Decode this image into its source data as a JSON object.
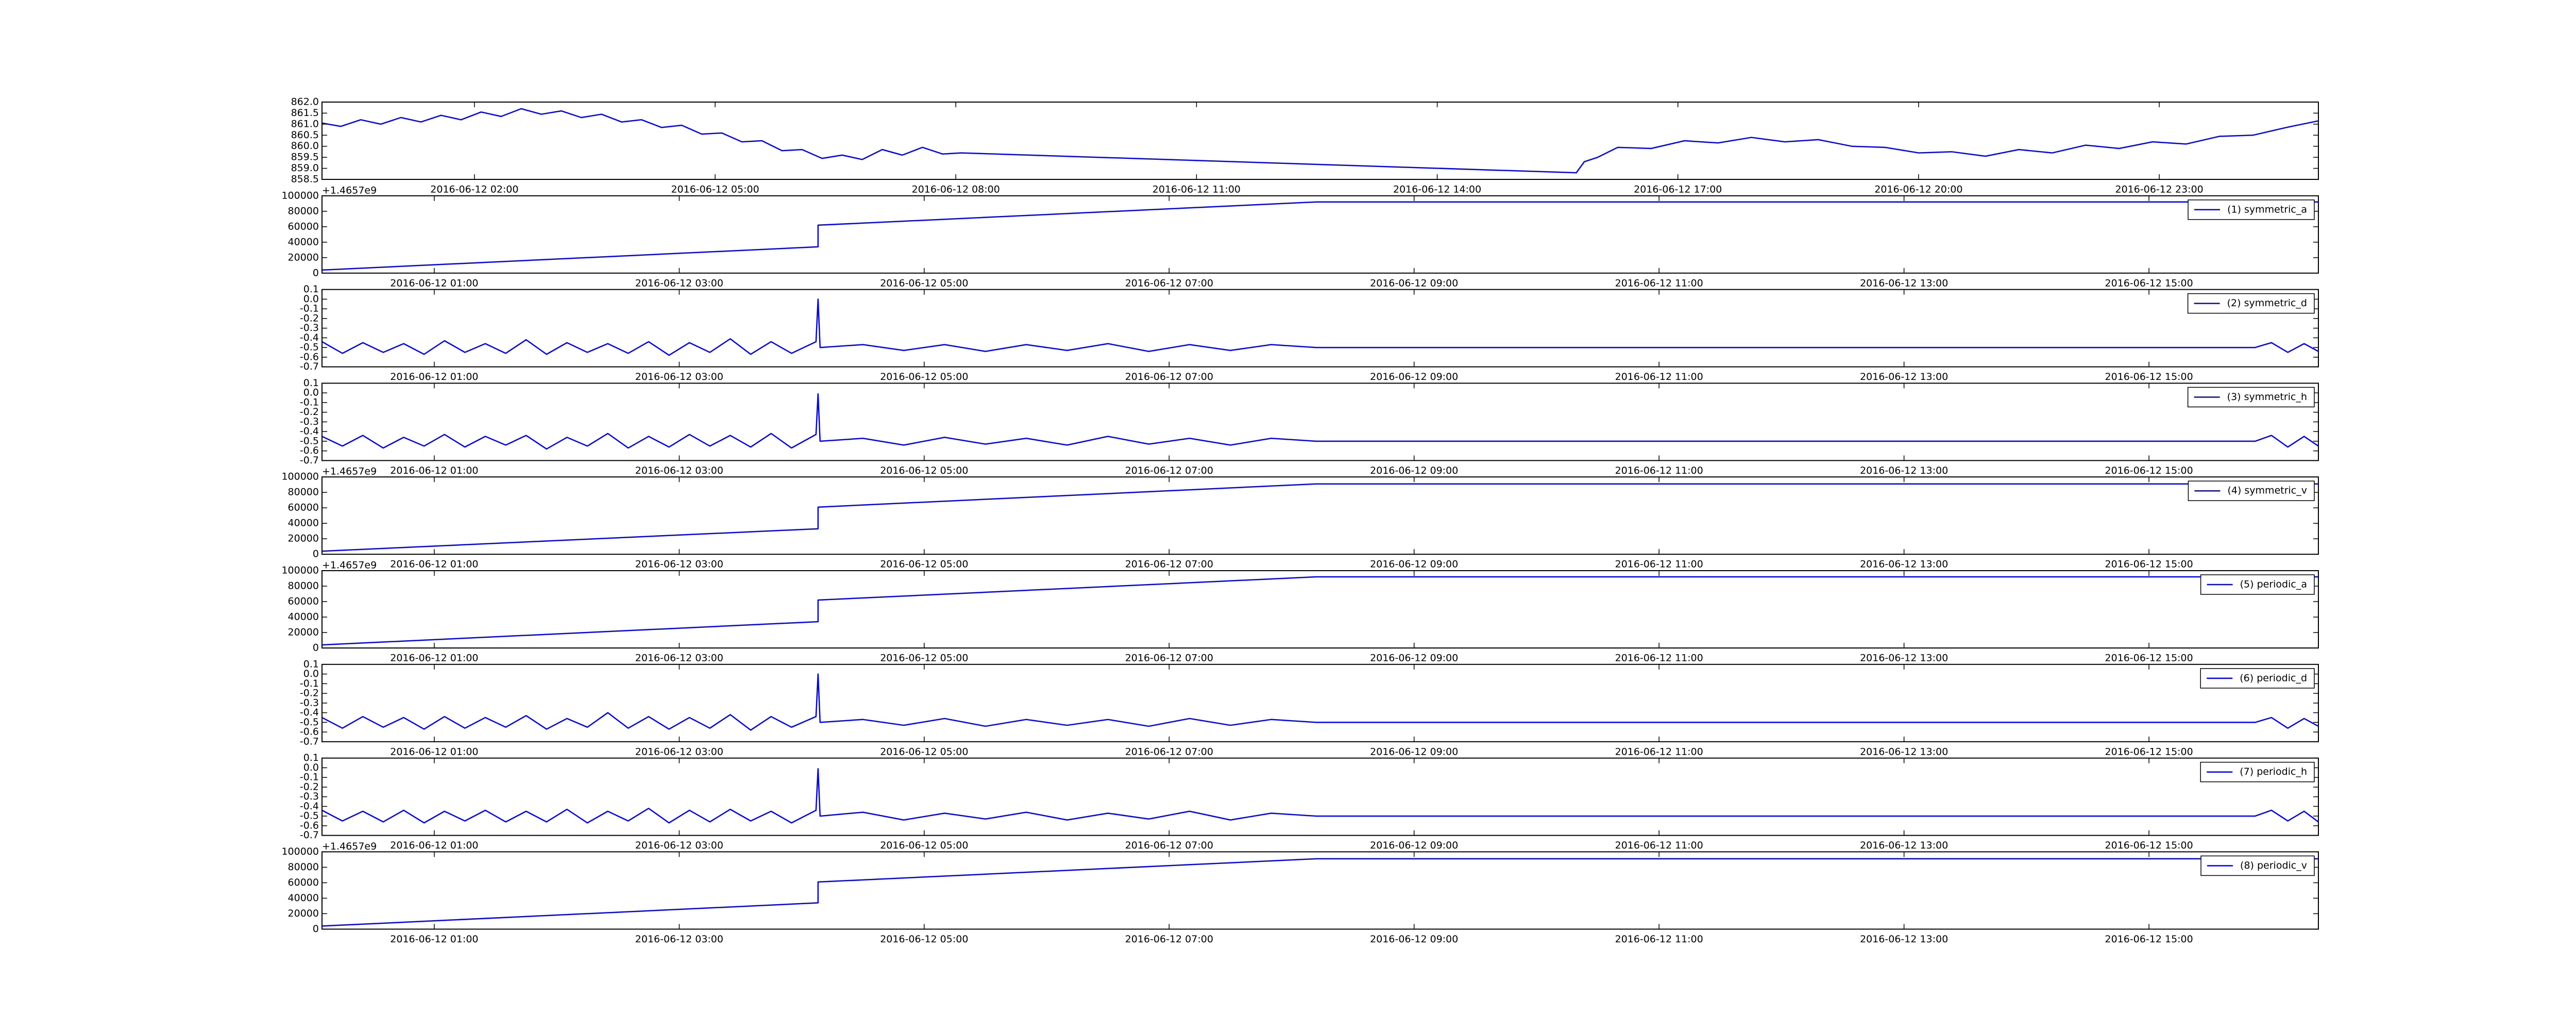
{
  "chart_data": [
    {
      "type": "line",
      "x": [
        "2016-06-12 00:06",
        "2016-06-12 00:20",
        "2016-06-12 00:35",
        "2016-06-12 00:50",
        "2016-06-12 01:05",
        "2016-06-12 01:20",
        "2016-06-12 01:35",
        "2016-06-12 01:50",
        "2016-06-12 02:05",
        "2016-06-12 02:20",
        "2016-06-12 02:35",
        "2016-06-12 02:50",
        "2016-06-12 03:05",
        "2016-06-12 03:20",
        "2016-06-12 03:35",
        "2016-06-12 03:50",
        "2016-06-12 04:05",
        "2016-06-12 04:20",
        "2016-06-12 04:35",
        "2016-06-12 04:50",
        "2016-06-12 05:05",
        "2016-06-12 05:20",
        "2016-06-12 05:35",
        "2016-06-12 05:50",
        "2016-06-12 06:05",
        "2016-06-12 06:20",
        "2016-06-12 06:35",
        "2016-06-12 06:50",
        "2016-06-12 07:05",
        "2016-06-12 07:20",
        "2016-06-12 07:35",
        "2016-06-12 07:50",
        "2016-06-12 08:04",
        "2016-06-12 15:44",
        "2016-06-12 15:50",
        "2016-06-12 16:00",
        "2016-06-12 16:15",
        "2016-06-12 16:40",
        "2016-06-12 17:05",
        "2016-06-12 17:30",
        "2016-06-12 17:55",
        "2016-06-12 18:20",
        "2016-06-12 18:45",
        "2016-06-12 19:10",
        "2016-06-12 19:35",
        "2016-06-12 20:00",
        "2016-06-12 20:25",
        "2016-06-12 20:50",
        "2016-06-12 21:15",
        "2016-06-12 21:40",
        "2016-06-12 22:05",
        "2016-06-12 22:30",
        "2016-06-12 22:55",
        "2016-06-12 23:20",
        "2016-06-12 23:45",
        "2016-06-13 00:10",
        "2016-06-13 00:35",
        "2016-06-13 00:59"
      ],
      "series": [
        {
          "color": "#0000ff",
          "values": [
            861.05,
            860.9,
            861.2,
            861.0,
            861.3,
            861.1,
            861.4,
            861.2,
            861.55,
            861.35,
            861.7,
            861.45,
            861.6,
            861.3,
            861.45,
            861.1,
            861.2,
            860.85,
            860.95,
            860.55,
            860.6,
            860.2,
            860.25,
            859.8,
            859.85,
            859.45,
            859.6,
            859.4,
            859.85,
            859.6,
            859.95,
            859.65,
            859.7,
            858.8,
            859.3,
            859.5,
            859.95,
            859.9,
            860.25,
            860.15,
            860.4,
            860.2,
            860.3,
            860.0,
            859.95,
            859.7,
            859.75,
            859.55,
            859.85,
            859.7,
            860.05,
            859.9,
            860.2,
            860.1,
            860.45,
            860.5,
            860.85,
            861.15
          ]
        }
      ],
      "xlim": [
        "2016-06-12 00:06",
        "2016-06-13 00:59"
      ],
      "xticks": [
        "2016-06-12 02:00",
        "2016-06-12 05:00",
        "2016-06-12 08:00",
        "2016-06-12 11:00",
        "2016-06-12 14:00",
        "2016-06-12 17:00",
        "2016-06-12 20:00",
        "2016-06-12 23:00"
      ],
      "ylim": [
        858.5,
        862.0
      ],
      "yticks": [
        858.5,
        {
          "value": 859,
          "label": "859.0"
        },
        859.5,
        {
          "value": 860,
          "label": "860.0"
        },
        860.5,
        {
          "value": 861,
          "label": "861.0"
        },
        861.5,
        {
          "value": 862,
          "label": "862.0"
        }
      ]
    },
    {
      "type": "line",
      "y_offset_label": "+1.4657e9",
      "legend": "upper right",
      "x": [
        "2016-06-12 00:05",
        "2016-06-12 04:08",
        "2016-06-12 04:08",
        "2016-06-12 08:12",
        "2016-06-12 16:23"
      ],
      "series": [
        {
          "name": "(1) symmetric_a",
          "color": "#0000ff",
          "values": [
            4000,
            34000,
            62000,
            92000,
            92000
          ]
        }
      ],
      "xlim": [
        "2016-06-12 00:05",
        "2016-06-12 16:23"
      ],
      "xticks": [
        "2016-06-12 01:00",
        "2016-06-12 03:00",
        "2016-06-12 05:00",
        "2016-06-12 07:00",
        "2016-06-12 09:00",
        "2016-06-12 11:00",
        "2016-06-12 13:00",
        "2016-06-12 15:00"
      ],
      "ylim": [
        0,
        100000
      ],
      "yticks": [
        0,
        20000,
        40000,
        60000,
        80000,
        100000
      ]
    },
    {
      "type": "line",
      "legend": "upper right",
      "x": [
        "2016-06-12 00:05",
        "2016-06-12 00:15",
        "2016-06-12 00:25",
        "2016-06-12 00:35",
        "2016-06-12 00:45",
        "2016-06-12 00:55",
        "2016-06-12 01:05",
        "2016-06-12 01:15",
        "2016-06-12 01:25",
        "2016-06-12 01:35",
        "2016-06-12 01:45",
        "2016-06-12 01:55",
        "2016-06-12 02:05",
        "2016-06-12 02:15",
        "2016-06-12 02:25",
        "2016-06-12 02:35",
        "2016-06-12 02:45",
        "2016-06-12 02:55",
        "2016-06-12 03:05",
        "2016-06-12 03:15",
        "2016-06-12 03:25",
        "2016-06-12 03:35",
        "2016-06-12 03:45",
        "2016-06-12 03:55",
        "2016-06-12 04:07",
        "2016-06-12 04:08",
        "2016-06-12 04:09",
        "2016-06-12 04:30",
        "2016-06-12 04:50",
        "2016-06-12 05:10",
        "2016-06-12 05:30",
        "2016-06-12 05:50",
        "2016-06-12 06:10",
        "2016-06-12 06:30",
        "2016-06-12 06:50",
        "2016-06-12 07:10",
        "2016-06-12 07:30",
        "2016-06-12 07:50",
        "2016-06-12 08:12",
        "2016-06-12 15:52",
        "2016-06-12 16:00",
        "2016-06-12 16:08",
        "2016-06-12 16:16",
        "2016-06-12 16:23"
      ],
      "series": [
        {
          "name": "(2) symmetric_d",
          "color": "#0000ff",
          "values": [
            -0.44,
            -0.56,
            -0.45,
            -0.55,
            -0.46,
            -0.57,
            -0.43,
            -0.55,
            -0.46,
            -0.56,
            -0.42,
            -0.57,
            -0.45,
            -0.55,
            -0.46,
            -0.56,
            -0.44,
            -0.58,
            -0.45,
            -0.55,
            -0.41,
            -0.57,
            -0.44,
            -0.56,
            -0.44,
            0.0,
            -0.5,
            -0.47,
            -0.53,
            -0.47,
            -0.54,
            -0.47,
            -0.53,
            -0.46,
            -0.54,
            -0.47,
            -0.53,
            -0.47,
            -0.5,
            -0.5,
            -0.45,
            -0.55,
            -0.46,
            -0.54
          ]
        }
      ],
      "xlim": [
        "2016-06-12 00:05",
        "2016-06-12 16:23"
      ],
      "xticks": [
        "2016-06-12 01:00",
        "2016-06-12 03:00",
        "2016-06-12 05:00",
        "2016-06-12 07:00",
        "2016-06-12 09:00",
        "2016-06-12 11:00",
        "2016-06-12 13:00",
        "2016-06-12 15:00"
      ],
      "ylim": [
        -0.7,
        0.1
      ],
      "yticks": [
        -0.7,
        -0.6,
        -0.5,
        -0.4,
        -0.3,
        -0.2,
        -0.1,
        {
          "value": 0,
          "label": "0.0"
        },
        0.1
      ]
    },
    {
      "type": "line",
      "legend": "upper right",
      "x": [
        "2016-06-12 00:05",
        "2016-06-12 00:15",
        "2016-06-12 00:25",
        "2016-06-12 00:35",
        "2016-06-12 00:45",
        "2016-06-12 00:55",
        "2016-06-12 01:05",
        "2016-06-12 01:15",
        "2016-06-12 01:25",
        "2016-06-12 01:35",
        "2016-06-12 01:45",
        "2016-06-12 01:55",
        "2016-06-12 02:05",
        "2016-06-12 02:15",
        "2016-06-12 02:25",
        "2016-06-12 02:35",
        "2016-06-12 02:45",
        "2016-06-12 02:55",
        "2016-06-12 03:05",
        "2016-06-12 03:15",
        "2016-06-12 03:25",
        "2016-06-12 03:35",
        "2016-06-12 03:45",
        "2016-06-12 03:55",
        "2016-06-12 04:07",
        "2016-06-12 04:08",
        "2016-06-12 04:09",
        "2016-06-12 04:30",
        "2016-06-12 04:50",
        "2016-06-12 05:10",
        "2016-06-12 05:30",
        "2016-06-12 05:50",
        "2016-06-12 06:10",
        "2016-06-12 06:30",
        "2016-06-12 06:50",
        "2016-06-12 07:10",
        "2016-06-12 07:30",
        "2016-06-12 07:50",
        "2016-06-12 08:12",
        "2016-06-12 15:52",
        "2016-06-12 16:00",
        "2016-06-12 16:08",
        "2016-06-12 16:16",
        "2016-06-12 16:23"
      ],
      "series": [
        {
          "name": "(3) symmetric_h",
          "color": "#0000ff",
          "values": [
            -0.45,
            -0.55,
            -0.44,
            -0.57,
            -0.46,
            -0.55,
            -0.43,
            -0.56,
            -0.45,
            -0.54,
            -0.44,
            -0.58,
            -0.46,
            -0.55,
            -0.42,
            -0.57,
            -0.45,
            -0.56,
            -0.43,
            -0.55,
            -0.44,
            -0.56,
            -0.42,
            -0.57,
            -0.43,
            -0.01,
            -0.5,
            -0.47,
            -0.54,
            -0.46,
            -0.53,
            -0.47,
            -0.54,
            -0.45,
            -0.53,
            -0.47,
            -0.54,
            -0.47,
            -0.5,
            -0.5,
            -0.44,
            -0.56,
            -0.45,
            -0.55
          ]
        }
      ],
      "xlim": [
        "2016-06-12 00:05",
        "2016-06-12 16:23"
      ],
      "xticks": [
        "2016-06-12 01:00",
        "2016-06-12 03:00",
        "2016-06-12 05:00",
        "2016-06-12 07:00",
        "2016-06-12 09:00",
        "2016-06-12 11:00",
        "2016-06-12 13:00",
        "2016-06-12 15:00"
      ],
      "ylim": [
        -0.7,
        0.1
      ],
      "yticks": [
        -0.7,
        -0.6,
        -0.5,
        -0.4,
        -0.3,
        -0.2,
        -0.1,
        {
          "value": 0,
          "label": "0.0"
        },
        0.1
      ]
    },
    {
      "type": "line",
      "y_offset_label": "+1.4657e9",
      "legend": "upper right",
      "x": [
        "2016-06-12 00:05",
        "2016-06-12 04:08",
        "2016-06-12 04:08",
        "2016-06-12 08:12",
        "2016-06-12 16:23"
      ],
      "series": [
        {
          "name": "(4) symmetric_v",
          "color": "#0000ff",
          "values": [
            4000,
            33000,
            61000,
            91000,
            91000
          ]
        }
      ],
      "xlim": [
        "2016-06-12 00:05",
        "2016-06-12 16:23"
      ],
      "xticks": [
        "2016-06-12 01:00",
        "2016-06-12 03:00",
        "2016-06-12 05:00",
        "2016-06-12 07:00",
        "2016-06-12 09:00",
        "2016-06-12 11:00",
        "2016-06-12 13:00",
        "2016-06-12 15:00"
      ],
      "ylim": [
        0,
        100000
      ],
      "yticks": [
        0,
        20000,
        40000,
        60000,
        80000,
        100000
      ]
    },
    {
      "type": "line",
      "y_offset_label": "+1.4657e9",
      "legend": "upper right",
      "x": [
        "2016-06-12 00:05",
        "2016-06-12 04:08",
        "2016-06-12 04:08",
        "2016-06-12 08:12",
        "2016-06-12 16:23"
      ],
      "series": [
        {
          "name": "(5) periodic_a",
          "color": "#0000ff",
          "values": [
            4000,
            34000,
            62000,
            92000,
            92000
          ]
        }
      ],
      "xlim": [
        "2016-06-12 00:05",
        "2016-06-12 16:23"
      ],
      "xticks": [
        "2016-06-12 01:00",
        "2016-06-12 03:00",
        "2016-06-12 05:00",
        "2016-06-12 07:00",
        "2016-06-12 09:00",
        "2016-06-12 11:00",
        "2016-06-12 13:00",
        "2016-06-12 15:00"
      ],
      "ylim": [
        0,
        100000
      ],
      "yticks": [
        0,
        20000,
        40000,
        60000,
        80000,
        100000
      ]
    },
    {
      "type": "line",
      "legend": "upper right",
      "x": [
        "2016-06-12 00:05",
        "2016-06-12 00:15",
        "2016-06-12 00:25",
        "2016-06-12 00:35",
        "2016-06-12 00:45",
        "2016-06-12 00:55",
        "2016-06-12 01:05",
        "2016-06-12 01:15",
        "2016-06-12 01:25",
        "2016-06-12 01:35",
        "2016-06-12 01:45",
        "2016-06-12 01:55",
        "2016-06-12 02:05",
        "2016-06-12 02:15",
        "2016-06-12 02:25",
        "2016-06-12 02:35",
        "2016-06-12 02:45",
        "2016-06-12 02:55",
        "2016-06-12 03:05",
        "2016-06-12 03:15",
        "2016-06-12 03:25",
        "2016-06-12 03:35",
        "2016-06-12 03:45",
        "2016-06-12 03:55",
        "2016-06-12 04:07",
        "2016-06-12 04:08",
        "2016-06-12 04:09",
        "2016-06-12 04:30",
        "2016-06-12 04:50",
        "2016-06-12 05:10",
        "2016-06-12 05:30",
        "2016-06-12 05:50",
        "2016-06-12 06:10",
        "2016-06-12 06:30",
        "2016-06-12 06:50",
        "2016-06-12 07:10",
        "2016-06-12 07:30",
        "2016-06-12 07:50",
        "2016-06-12 08:12",
        "2016-06-12 15:52",
        "2016-06-12 16:00",
        "2016-06-12 16:08",
        "2016-06-12 16:16",
        "2016-06-12 16:23"
      ],
      "series": [
        {
          "name": "(6) periodic_d",
          "color": "#0000ff",
          "values": [
            -0.45,
            -0.56,
            -0.44,
            -0.55,
            -0.45,
            -0.57,
            -0.44,
            -0.56,
            -0.45,
            -0.55,
            -0.43,
            -0.57,
            -0.46,
            -0.55,
            -0.4,
            -0.56,
            -0.44,
            -0.57,
            -0.45,
            -0.56,
            -0.42,
            -0.58,
            -0.44,
            -0.55,
            -0.44,
            0.0,
            -0.5,
            -0.47,
            -0.53,
            -0.46,
            -0.54,
            -0.47,
            -0.53,
            -0.47,
            -0.54,
            -0.46,
            -0.53,
            -0.47,
            -0.5,
            -0.5,
            -0.45,
            -0.56,
            -0.46,
            -0.54
          ]
        }
      ],
      "xlim": [
        "2016-06-12 00:05",
        "2016-06-12 16:23"
      ],
      "xticks": [
        "2016-06-12 01:00",
        "2016-06-12 03:00",
        "2016-06-12 05:00",
        "2016-06-12 07:00",
        "2016-06-12 09:00",
        "2016-06-12 11:00",
        "2016-06-12 13:00",
        "2016-06-12 15:00"
      ],
      "ylim": [
        -0.7,
        0.1
      ],
      "yticks": [
        -0.7,
        -0.6,
        -0.5,
        -0.4,
        -0.3,
        -0.2,
        -0.1,
        {
          "value": 0,
          "label": "0.0"
        },
        0.1
      ]
    },
    {
      "type": "line",
      "legend": "upper right",
      "x": [
        "2016-06-12 00:05",
        "2016-06-12 00:15",
        "2016-06-12 00:25",
        "2016-06-12 00:35",
        "2016-06-12 00:45",
        "2016-06-12 00:55",
        "2016-06-12 01:05",
        "2016-06-12 01:15",
        "2016-06-12 01:25",
        "2016-06-12 01:35",
        "2016-06-12 01:45",
        "2016-06-12 01:55",
        "2016-06-12 02:05",
        "2016-06-12 02:15",
        "2016-06-12 02:25",
        "2016-06-12 02:35",
        "2016-06-12 02:45",
        "2016-06-12 02:55",
        "2016-06-12 03:05",
        "2016-06-12 03:15",
        "2016-06-12 03:25",
        "2016-06-12 03:35",
        "2016-06-12 03:45",
        "2016-06-12 03:55",
        "2016-06-12 04:07",
        "2016-06-12 04:08",
        "2016-06-12 04:09",
        "2016-06-12 04:30",
        "2016-06-12 04:50",
        "2016-06-12 05:10",
        "2016-06-12 05:30",
        "2016-06-12 05:50",
        "2016-06-12 06:10",
        "2016-06-12 06:30",
        "2016-06-12 06:50",
        "2016-06-12 07:10",
        "2016-06-12 07:30",
        "2016-06-12 07:50",
        "2016-06-12 08:12",
        "2016-06-12 15:52",
        "2016-06-12 16:00",
        "2016-06-12 16:08",
        "2016-06-12 16:16",
        "2016-06-12 16:23"
      ],
      "series": [
        {
          "name": "(7) periodic_h",
          "color": "#0000ff",
          "values": [
            -0.44,
            -0.55,
            -0.45,
            -0.56,
            -0.44,
            -0.57,
            -0.45,
            -0.55,
            -0.44,
            -0.56,
            -0.45,
            -0.56,
            -0.43,
            -0.57,
            -0.45,
            -0.55,
            -0.42,
            -0.57,
            -0.44,
            -0.56,
            -0.43,
            -0.55,
            -0.45,
            -0.57,
            -0.44,
            -0.01,
            -0.5,
            -0.46,
            -0.54,
            -0.47,
            -0.53,
            -0.46,
            -0.54,
            -0.47,
            -0.53,
            -0.45,
            -0.54,
            -0.47,
            -0.5,
            -0.5,
            -0.44,
            -0.55,
            -0.45,
            -0.56
          ]
        }
      ],
      "xlim": [
        "2016-06-12 00:05",
        "2016-06-12 16:23"
      ],
      "xticks": [
        "2016-06-12 01:00",
        "2016-06-12 03:00",
        "2016-06-12 05:00",
        "2016-06-12 07:00",
        "2016-06-12 09:00",
        "2016-06-12 11:00",
        "2016-06-12 13:00",
        "2016-06-12 15:00"
      ],
      "ylim": [
        -0.7,
        0.1
      ],
      "yticks": [
        -0.7,
        -0.6,
        -0.5,
        -0.4,
        -0.3,
        -0.2,
        -0.1,
        {
          "value": 0,
          "label": "0.0"
        },
        0.1
      ]
    },
    {
      "type": "line",
      "y_offset_label": "+1.4657e9",
      "legend": "upper right",
      "x": [
        "2016-06-12 00:05",
        "2016-06-12 04:08",
        "2016-06-12 04:08",
        "2016-06-12 08:12",
        "2016-06-12 16:23"
      ],
      "series": [
        {
          "name": "(8) periodic_v",
          "color": "#0000ff",
          "values": [
            4000,
            34000,
            61000,
            91000,
            91000
          ]
        }
      ],
      "xlim": [
        "2016-06-12 00:05",
        "2016-06-12 16:23"
      ],
      "xticks": [
        "2016-06-12 01:00",
        "2016-06-12 03:00",
        "2016-06-12 05:00",
        "2016-06-12 07:00",
        "2016-06-12 09:00",
        "2016-06-12 11:00",
        "2016-06-12 13:00",
        "2016-06-12 15:00"
      ],
      "ylim": [
        0,
        100000
      ],
      "yticks": [
        0,
        20000,
        40000,
        60000,
        80000,
        100000
      ]
    }
  ]
}
